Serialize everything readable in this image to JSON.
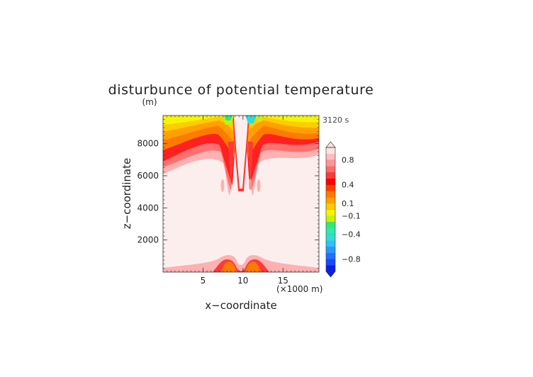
{
  "chart_data": {
    "type": "heatmap",
    "title": "disturbunce of potential temperature",
    "units_label": "(m)",
    "time_label": "3120 s",
    "xlabel": "x−coordinate",
    "ylabel": "z−coordinate",
    "x_unit_label": "(×1000 m)",
    "xlim": [
      0,
      19.5
    ],
    "ylim": [
      0,
      9750
    ],
    "x_ticks": [
      {
        "value": 5,
        "label": "5"
      },
      {
        "value": 10,
        "label": "10"
      },
      {
        "value": 15,
        "label": "15"
      }
    ],
    "y_ticks": [
      {
        "value": 2000,
        "label": "2000"
      },
      {
        "value": 4000,
        "label": "4000"
      },
      {
        "value": 6000,
        "label": "6000"
      },
      {
        "value": 8000,
        "label": "8000"
      }
    ],
    "colorbar": {
      "levels": [
        -1.0,
        -0.9,
        -0.8,
        -0.7,
        -0.6,
        -0.5,
        -0.4,
        -0.3,
        -0.2,
        -0.1,
        0,
        0.1,
        0.2,
        0.3,
        0.4,
        0.5,
        0.6,
        0.7,
        0.8,
        0.9,
        1.0
      ],
      "colors": [
        "#0a1ee6",
        "#1c46ff",
        "#2070ff",
        "#2c96ff",
        "#32bfff",
        "#32dcd2",
        "#30e8b0",
        "#2cea7a",
        "#c8ee10",
        "#f5f500",
        "#ffcc00",
        "#ffa000",
        "#ff7a00",
        "#ff3c00",
        "#ff0000",
        "#ff3838",
        "#ff6a6a",
        "#ff9494",
        "#ffbcbc",
        "#ffe2e2"
      ],
      "labels": [
        {
          "value": 0.8,
          "label": "0.8"
        },
        {
          "value": 0.4,
          "label": "0.4"
        },
        {
          "value": 0.1,
          "label": "0.1"
        },
        {
          "value": -0.1,
          "label": "−0.1"
        },
        {
          "value": -0.4,
          "label": "−0.4"
        },
        {
          "value": -0.8,
          "label": "−0.8"
        }
      ]
    },
    "field": {
      "background": "#fdeeee",
      "bands": [
        {
          "description": "top layer",
          "colors": [
            "#ffb0b0",
            "#ff7070",
            "#ff2020",
            "#ff7a00",
            "#ffa000",
            "#ffcc00",
            "#f5f500"
          ]
        },
        {
          "description": "bottom layer",
          "colors": [
            "#ff9494",
            "#ff3838",
            "#ff7a00"
          ]
        }
      ]
    }
  }
}
